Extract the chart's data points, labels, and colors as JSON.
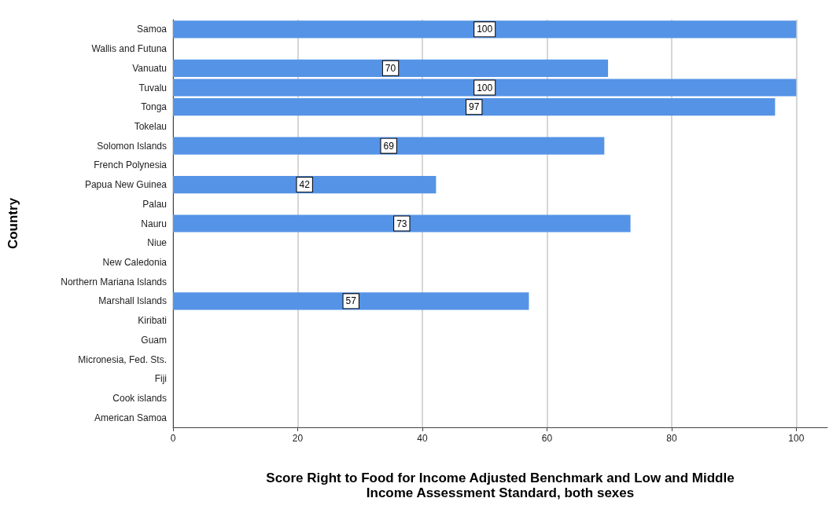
{
  "chart_data": {
    "type": "bar",
    "orientation": "horizontal",
    "xlabel": "Score Right to Food for Income Adjusted Benchmark and Low and Middle\nIncome Assessment Standard, both sexes",
    "ylabel": "Country",
    "categories": [
      "Samoa",
      "Wallis and Futuna",
      "Vanuatu",
      "Tuvalu",
      "Tonga",
      "Tokelau",
      "Solomon Islands",
      "French Polynesia",
      "Papua New Guinea",
      "Palau",
      "Nauru",
      "Niue",
      "New Caledonia",
      "Northern Mariana Islands",
      "Marshall Islands",
      "Kiribati",
      "Guam",
      "Micronesia, Fed. Sts.",
      "Fiji",
      "Cook islands",
      "American Samoa"
    ],
    "values": [
      100,
      null,
      69.8,
      100,
      96.6,
      null,
      69.2,
      null,
      42.2,
      null,
      73.4,
      null,
      null,
      null,
      57.1,
      null,
      null,
      null,
      null,
      null,
      null
    ],
    "value_labels": [
      "100",
      null,
      "70",
      "100",
      "97",
      null,
      "69",
      null,
      "42",
      null,
      "73",
      null,
      null,
      null,
      "57",
      null,
      null,
      null,
      null,
      null,
      null
    ],
    "color": "#5593e6",
    "xlim": [
      0,
      105
    ],
    "xticks": [
      0,
      20,
      40,
      60,
      80,
      100
    ],
    "grid": "x"
  }
}
